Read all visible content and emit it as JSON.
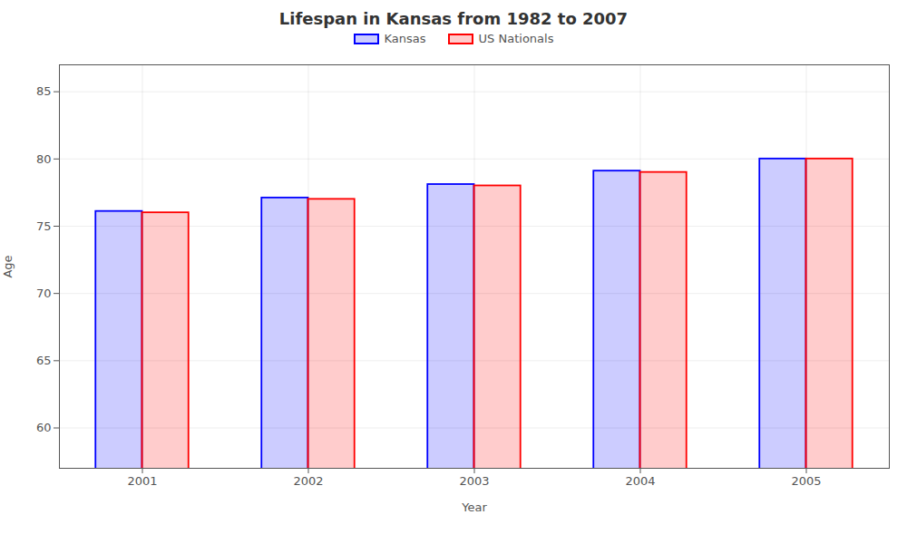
{
  "chart_data": {
    "type": "bar",
    "title": "Lifespan in Kansas from 1982 to 2007",
    "xlabel": "Year",
    "ylabel": "Age",
    "categories": [
      "2001",
      "2002",
      "2003",
      "2004",
      "2005"
    ],
    "series": [
      {
        "name": "Kansas",
        "color": "#0000ff",
        "values": [
          76.1,
          77.1,
          78.1,
          79.1,
          80.0
        ]
      },
      {
        "name": "US Nationals",
        "color": "#ff0000",
        "values": [
          76.0,
          77.0,
          78.0,
          79.0,
          80.0
        ]
      }
    ],
    "ylim": [
      57,
      87
    ],
    "yticks": [
      60,
      65,
      70,
      75,
      80,
      85
    ],
    "grid": true,
    "legend": "top"
  }
}
